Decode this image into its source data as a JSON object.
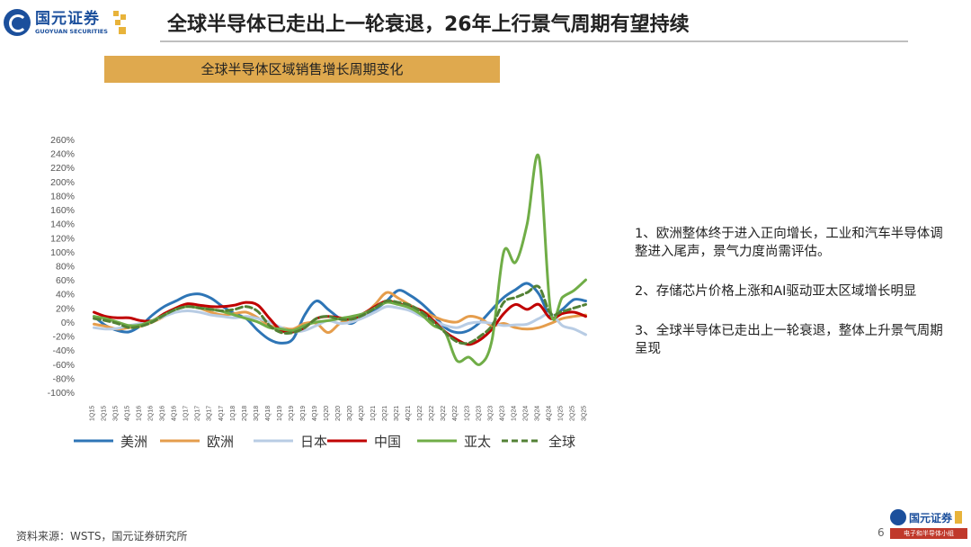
{
  "header": {
    "logo_cn": "国元证券",
    "logo_en": "GUOYUAN SECURITIES",
    "title": "全球半导体已走出上一轮衰退，26年上行景气周期有望持续"
  },
  "chart_banner": "全球半导体区域销售增长周期变化",
  "notes": [
    "1、欧洲整体终于进入正向增长，工业和汽车半导体调整进入尾声，景气力度尚需评估。",
    "2、存储芯片价格上涨和AI驱动亚太区域增长明显",
    "3、全球半导体已走出上一轮衰退，整体上升景气周期呈现"
  ],
  "footer": {
    "source": "资料来源：WSTS，国元证券研究所",
    "page_number": "6",
    "logo_cn": "国元证券",
    "logo_sub": "电子和半导体小组"
  },
  "chart_data": {
    "type": "line",
    "title": "",
    "xlabel": "",
    "ylabel": "",
    "ylim": [
      -100,
      260
    ],
    "y_ticks": [
      "260%",
      "240%",
      "220%",
      "200%",
      "180%",
      "160%",
      "140%",
      "120%",
      "100%",
      "80%",
      "60%",
      "40%",
      "20%",
      "0%",
      "-20%",
      "-40%",
      "-60%",
      "-80%",
      "-100%"
    ],
    "categories": [
      "1Q15",
      "2Q15",
      "3Q15",
      "4Q15",
      "1Q16",
      "2Q16",
      "3Q16",
      "4Q16",
      "1Q17",
      "2Q17",
      "3Q17",
      "4Q17",
      "1Q18",
      "2Q18",
      "3Q18",
      "4Q18",
      "1Q19",
      "2Q19",
      "3Q19",
      "4Q19",
      "1Q20",
      "2Q20",
      "3Q20",
      "4Q20",
      "1Q21",
      "2Q21",
      "3Q21",
      "4Q21",
      "1Q22",
      "2Q22",
      "3Q22",
      "4Q22",
      "1Q23",
      "2Q23",
      "3Q23",
      "4Q23",
      "1Q24",
      "2Q24",
      "3Q24",
      "4Q24",
      "1Q25",
      "2Q25",
      "3Q25"
    ],
    "legend_position": "bottom",
    "grid": false,
    "series": [
      {
        "name": "美洲",
        "color": "#2e75b6",
        "dashed": false,
        "values": [
          8,
          -5,
          -12,
          -14,
          -5,
          10,
          22,
          30,
          38,
          40,
          34,
          22,
          12,
          5,
          -12,
          -25,
          -30,
          -24,
          10,
          30,
          18,
          5,
          -2,
          10,
          18,
          30,
          45,
          38,
          26,
          10,
          -8,
          -15,
          -12,
          0,
          18,
          35,
          46,
          55,
          40,
          8,
          18,
          32,
          30
        ]
      },
      {
        "name": "欧洲",
        "color": "#e59d4c",
        "dashed": false,
        "values": [
          -3,
          -6,
          -10,
          -8,
          -6,
          0,
          8,
          20,
          25,
          20,
          14,
          10,
          12,
          14,
          6,
          -5,
          -8,
          -10,
          -2,
          -2,
          -15,
          -2,
          5,
          10,
          25,
          42,
          34,
          24,
          16,
          8,
          2,
          0,
          8,
          5,
          -5,
          -2,
          -8,
          -10,
          -8,
          -2,
          5,
          8,
          10
        ]
      },
      {
        "name": "日本",
        "color": "#b8cce4",
        "dashed": false,
        "values": [
          -8,
          -10,
          -9,
          -5,
          -2,
          2,
          8,
          14,
          16,
          14,
          10,
          8,
          6,
          8,
          5,
          0,
          -8,
          -14,
          -12,
          -5,
          2,
          -2,
          0,
          6,
          14,
          22,
          20,
          16,
          8,
          2,
          -5,
          -8,
          -2,
          0,
          -2,
          -5,
          -4,
          -3,
          5,
          12,
          -5,
          -10,
          -18
        ]
      },
      {
        "name": "中国",
        "color": "#c00000",
        "dashed": false,
        "values": [
          14,
          8,
          6,
          6,
          2,
          2,
          12,
          20,
          26,
          24,
          22,
          22,
          24,
          28,
          24,
          5,
          -12,
          -14,
          -8,
          5,
          8,
          6,
          4,
          12,
          22,
          30,
          26,
          22,
          16,
          2,
          -14,
          -25,
          -32,
          -25,
          -10,
          12,
          25,
          18,
          25,
          5,
          12,
          14,
          8
        ]
      },
      {
        "name": "亚太",
        "color": "#70ad47",
        "dashed": false,
        "values": [
          8,
          5,
          0,
          -5,
          -4,
          2,
          10,
          18,
          22,
          20,
          18,
          15,
          10,
          5,
          0,
          -8,
          -10,
          -12,
          -5,
          0,
          2,
          5,
          8,
          12,
          20,
          28,
          25,
          20,
          10,
          -5,
          -15,
          -55,
          -50,
          -60,
          -25,
          100,
          85,
          140,
          235,
          15,
          35,
          45,
          60
        ]
      },
      {
        "name": "全球",
        "color": "#538135",
        "dashed": true,
        "values": [
          5,
          2,
          -2,
          -8,
          -6,
          0,
          10,
          18,
          22,
          20,
          18,
          16,
          18,
          22,
          15,
          -5,
          -15,
          -15,
          -8,
          5,
          8,
          4,
          4,
          10,
          20,
          30,
          28,
          24,
          14,
          0,
          -15,
          -28,
          -30,
          -20,
          -5,
          28,
          35,
          42,
          50,
          12,
          15,
          20,
          25
        ]
      }
    ]
  }
}
